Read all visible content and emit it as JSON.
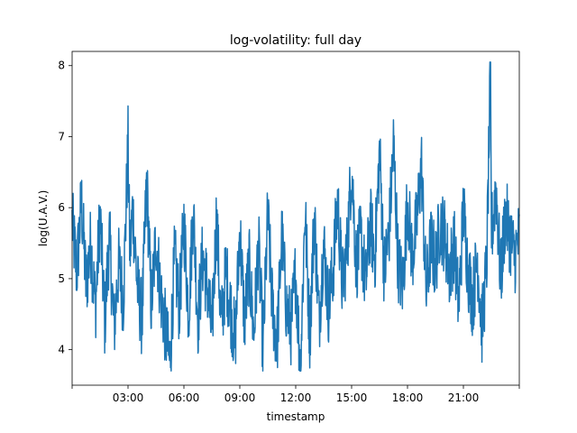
{
  "chart_data": {
    "type": "line",
    "title": "log-volatility: full day",
    "xlabel": "timestamp",
    "ylabel": "log(U.A.V.)",
    "xlim_hours": [
      0,
      24
    ],
    "ylim": [
      3.5,
      8.2
    ],
    "x_ticks": [
      {
        "hour": 0,
        "label": ""
      },
      {
        "hour": 3,
        "label": "03:00"
      },
      {
        "hour": 6,
        "label": "06:00"
      },
      {
        "hour": 9,
        "label": "09:00"
      },
      {
        "hour": 12,
        "label": "12:00"
      },
      {
        "hour": 15,
        "label": "15:00"
      },
      {
        "hour": 18,
        "label": "18:00"
      },
      {
        "hour": 21,
        "label": "21:00"
      },
      {
        "hour": 24,
        "label": ""
      }
    ],
    "y_ticks": [
      {
        "value": 4,
        "label": "4"
      },
      {
        "value": 5,
        "label": "5"
      },
      {
        "value": 6,
        "label": "6"
      },
      {
        "value": 7,
        "label": "7"
      },
      {
        "value": 8,
        "label": "8"
      }
    ],
    "grid": false,
    "line_color": "#1f77b4",
    "series": [
      {
        "x_hours": [
          0.0,
          0.25,
          0.5,
          0.75,
          1.0,
          1.25,
          1.5,
          1.75,
          2.0,
          2.25,
          2.5,
          2.75,
          3.0,
          3.1,
          3.25,
          3.5,
          3.75,
          4.0,
          4.25,
          4.5,
          4.75,
          5.0,
          5.25,
          5.5,
          5.75,
          6.0,
          6.25,
          6.5,
          6.75,
          7.0,
          7.25,
          7.5,
          7.75,
          8.0,
          8.25,
          8.5,
          8.75,
          9.0,
          9.25,
          9.5,
          9.75,
          10.0,
          10.25,
          10.5,
          10.75,
          11.0,
          11.25,
          11.5,
          11.75,
          12.0,
          12.25,
          12.5,
          12.75,
          13.0,
          13.25,
          13.5,
          13.75,
          14.0,
          14.25,
          14.5,
          14.75,
          15.0,
          15.25,
          15.5,
          15.75,
          16.0,
          16.25,
          16.5,
          16.75,
          17.0,
          17.25,
          17.5,
          17.75,
          18.0,
          18.25,
          18.5,
          18.75,
          19.0,
          19.25,
          19.5,
          19.75,
          20.0,
          20.25,
          20.5,
          20.75,
          21.0,
          21.25,
          21.5,
          21.75,
          22.0,
          22.25,
          22.45,
          22.5,
          22.75,
          23.0,
          23.25,
          23.5,
          23.75,
          24.0
        ],
        "values": [
          5.8,
          5.1,
          6.1,
          4.9,
          5.5,
          4.6,
          5.9,
          4.4,
          5.6,
          4.3,
          5.2,
          4.7,
          6.9,
          5.3,
          6.0,
          4.9,
          4.4,
          6.4,
          4.6,
          5.6,
          4.8,
          4.3,
          3.8,
          5.3,
          4.6,
          5.8,
          4.5,
          6.0,
          4.4,
          5.3,
          4.9,
          4.2,
          5.9,
          4.3,
          5.1,
          4.6,
          4.1,
          5.7,
          4.4,
          5.2,
          4.2,
          5.5,
          4.0,
          5.9,
          4.6,
          4.1,
          5.6,
          4.6,
          4.3,
          5.1,
          3.7,
          6.0,
          4.2,
          5.9,
          4.4,
          5.5,
          4.6,
          5.1,
          6.1,
          4.9,
          5.4,
          6.6,
          5.2,
          5.6,
          4.9,
          5.8,
          5.3,
          6.8,
          5.1,
          5.6,
          6.9,
          5.2,
          4.9,
          6.1,
          5.3,
          5.8,
          6.6,
          4.8,
          5.5,
          5.2,
          5.8,
          5.6,
          5.1,
          5.5,
          4.6,
          6.0,
          5.1,
          4.7,
          5.3,
          4.3,
          5.2,
          7.9,
          5.6,
          6.3,
          5.0,
          5.9,
          5.6,
          5.3,
          5.6
        ]
      }
    ]
  }
}
